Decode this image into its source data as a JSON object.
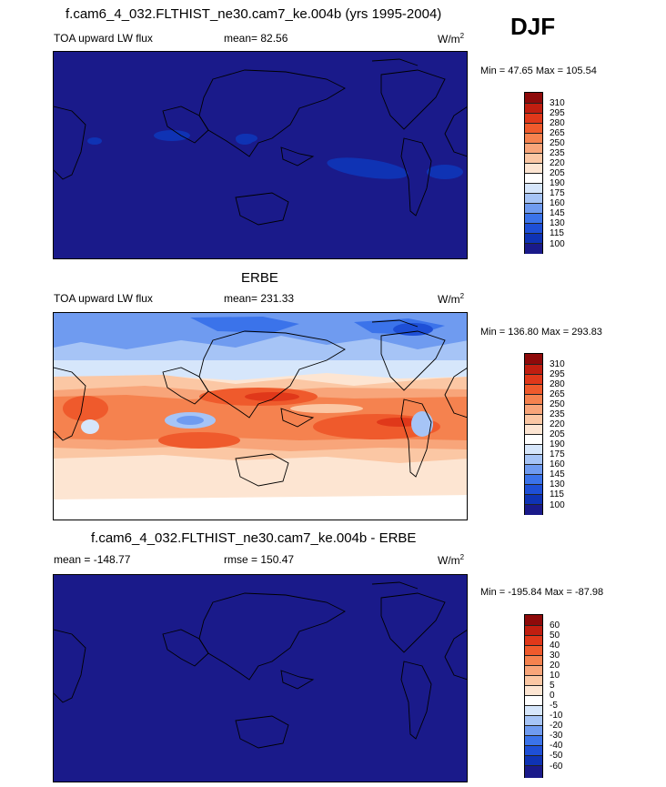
{
  "season": "DJF",
  "colors": [
    "#1a1a8a",
    "#0f33b4",
    "#1e4fd6",
    "#3b73ea",
    "#6f9bf0",
    "#a6c4f6",
    "#d6e6fb",
    "#ffffff",
    "#fde5d2",
    "#fbc7a4",
    "#f8a57a",
    "#f5824f",
    "#ef5a2c",
    "#e0381a",
    "#c01e10",
    "#8e0a0a"
  ],
  "panels": [
    {
      "title": "f.cam6_4_032.FLTHIST_ne30.cam7_ke.004b (yrs 1995-2004)",
      "left": "TOA upward LW flux",
      "center": "mean=  82.56",
      "units": "W/m",
      "units_exp": "2",
      "minmax": "Min =  47.65 Max = 105.54",
      "levels": [
        "310",
        "295",
        "280",
        "265",
        "250",
        "235",
        "220",
        "205",
        "190",
        "175",
        "160",
        "145",
        "130",
        "115",
        "100"
      ]
    },
    {
      "title": "ERBE",
      "left": "TOA upward LW flux",
      "center": "mean= 231.33",
      "units": "W/m",
      "units_exp": "2",
      "minmax": "Min = 136.80 Max = 293.83",
      "levels": [
        "310",
        "295",
        "280",
        "265",
        "250",
        "235",
        "220",
        "205",
        "190",
        "175",
        "160",
        "145",
        "130",
        "115",
        "100"
      ]
    },
    {
      "title": "f.cam6_4_032.FLTHIST_ne30.cam7_ke.004b - ERBE",
      "left": "mean = -148.77",
      "center": "rmse = 150.47",
      "units": "W/m",
      "units_exp": "2",
      "minmax": "Min = -195.84 Max = -87.98",
      "levels": [
        "60",
        "50",
        "40",
        "30",
        "20",
        "10",
        "5",
        "0",
        "-5",
        "-10",
        "-20",
        "-30",
        "-40",
        "-50",
        "-60"
      ]
    }
  ]
}
